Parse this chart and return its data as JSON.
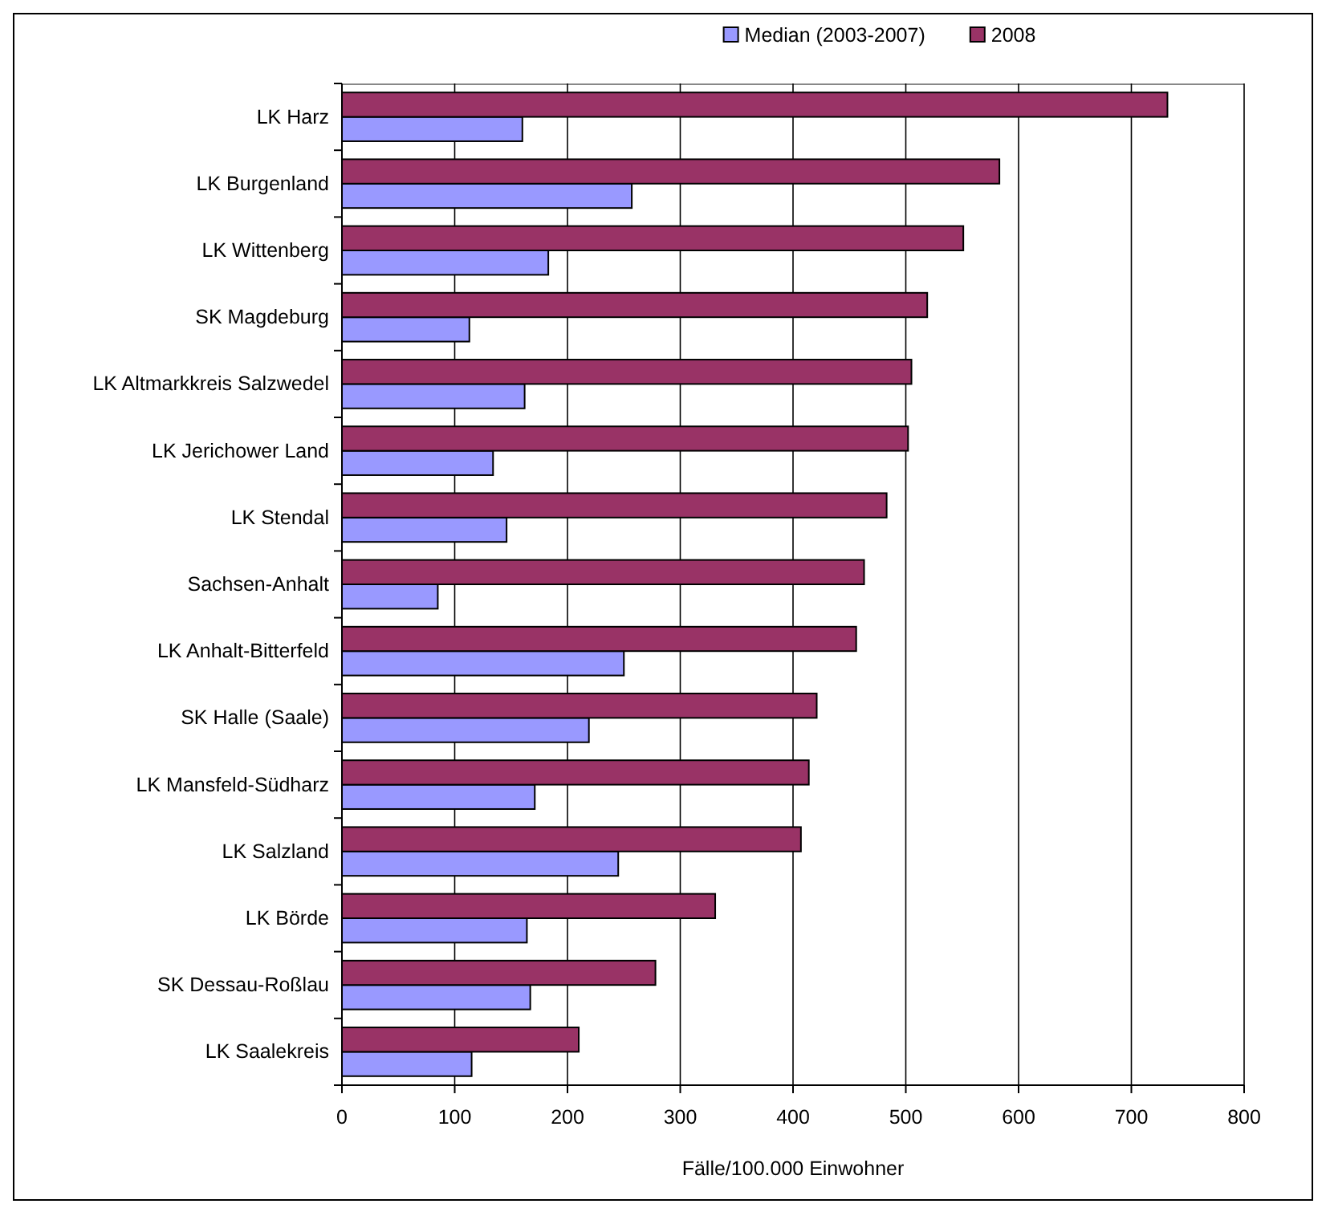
{
  "chart_data": {
    "type": "bar",
    "orientation": "horizontal",
    "xlabel": "Fälle/100.000 Einwohner",
    "categories": [
      "LK Harz",
      "LK Burgenland",
      "LK Wittenberg",
      "SK Magdeburg",
      "LK Altmarkkreis Salzwedel",
      "LK Jerichower Land",
      "LK Stendal",
      "Sachsen-Anhalt",
      "LK Anhalt-Bitterfeld",
      "SK Halle (Saale)",
      "LK Mansfeld-Südharz",
      "LK Salzland",
      "LK Börde",
      "SK Dessau-Roßlau",
      "LK Saalekreis"
    ],
    "series": [
      {
        "name": "Median (2003-2007)",
        "color": "#9999ff",
        "values": [
          160,
          257,
          183,
          113,
          162,
          134,
          146,
          85,
          250,
          219,
          171,
          245,
          164,
          167,
          115
        ]
      },
      {
        "name": "2008",
        "color": "#993366",
        "values": [
          732,
          583,
          551,
          519,
          505,
          502,
          483,
          463,
          456,
          421,
          414,
          407,
          331,
          278,
          210
        ]
      }
    ],
    "xlim": [
      0,
      800
    ],
    "xticks": [
      0,
      100,
      200,
      300,
      400,
      500,
      600,
      700,
      800
    ],
    "grid": "x",
    "legend": "top"
  }
}
